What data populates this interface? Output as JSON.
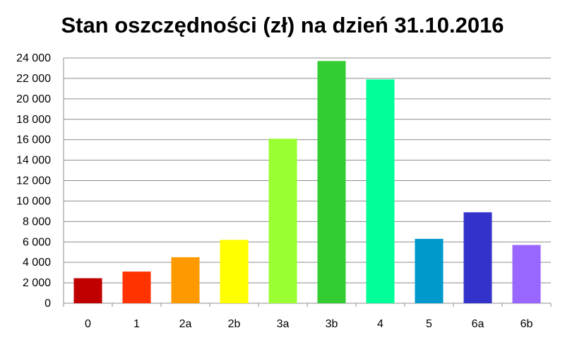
{
  "chart_data": {
    "type": "bar",
    "title": "Stan oszczędności (zł) na dzień 31.10.2016",
    "categories": [
      "0",
      "1",
      "2a",
      "2b",
      "3a",
      "3b",
      "4",
      "5",
      "6a",
      "6b"
    ],
    "values": [
      2450,
      3100,
      4500,
      6200,
      16100,
      23700,
      21900,
      6300,
      8900,
      5700
    ],
    "colors": [
      "#c00000",
      "#ff3300",
      "#ff9900",
      "#ffff00",
      "#99ff33",
      "#33cc33",
      "#00ff99",
      "#0099cc",
      "#3333cc",
      "#9966ff"
    ],
    "ylim": [
      0,
      24000
    ],
    "ytick_step": 2000,
    "yticks": [
      "0",
      "2 000",
      "4 000",
      "6 000",
      "8 000",
      "10 000",
      "12 000",
      "14 000",
      "16 000",
      "18 000",
      "20 000",
      "22 000",
      "24 000"
    ],
    "grid": true,
    "legend": "none",
    "xlabel": "",
    "ylabel": ""
  }
}
